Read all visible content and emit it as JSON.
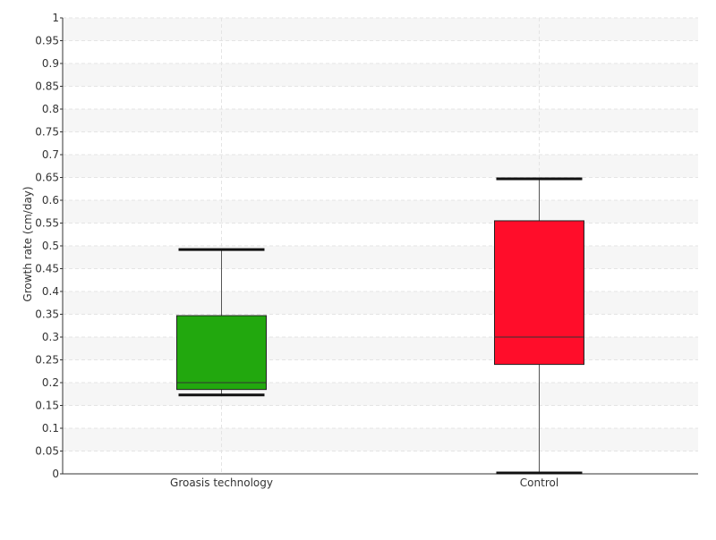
{
  "chart_data": {
    "type": "box",
    "title": "",
    "xlabel": "",
    "ylabel": "Growth rate (cm/day)",
    "ylim": [
      0,
      1
    ],
    "ytick_step": 0.05,
    "grid": true,
    "categories": [
      "Groasis technology",
      "Control"
    ],
    "boxes": [
      {
        "category": "Groasis technology",
        "whisker_low": 0.173,
        "q1": 0.185,
        "median": 0.2,
        "q3": 0.347,
        "whisker_high": 0.492,
        "color": "#22a80e"
      },
      {
        "category": "Control",
        "whisker_low": 0.002,
        "q1": 0.24,
        "median": 0.3,
        "q3": 0.555,
        "whisker_high": 0.647,
        "color": "#ff0d2a"
      }
    ]
  }
}
